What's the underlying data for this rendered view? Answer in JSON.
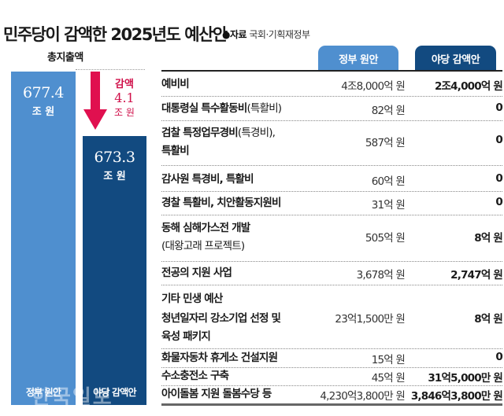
{
  "title": "민주당이 감액한 2025년도 예산안",
  "source_label": "●자료",
  "source": "국회·기획재정부",
  "chart_data": {
    "type": "bar",
    "title": "총지출액",
    "categories": [
      "정부 원안",
      "야당 감액안"
    ],
    "values": [
      677.4,
      673.3
    ],
    "value_labels": [
      "677.4",
      "673.3"
    ],
    "unit": "조 원",
    "colors": [
      "#4f8fcf",
      "#124a80"
    ],
    "annotation": {
      "label": "감액",
      "value": "4.1",
      "unit": "조 원",
      "color": "#d0104a"
    }
  },
  "table": {
    "headers": [
      "정부 원안",
      "야당 감액안"
    ],
    "rows": [
      {
        "name": "예비비",
        "gov": "4조8,000억 원",
        "opp": "2조4,000억 원"
      },
      {
        "name": "대통령실 특수활동비",
        "sub": "(특활비)",
        "gov": "82억 원",
        "opp": "0"
      },
      {
        "name": "검찰 특정업무경비",
        "sub": "(특경비),",
        "name2": "특활비",
        "gov": "587억 원",
        "opp": "0"
      },
      {
        "name": "감사원 특경비, 특활비",
        "gov": "60억 원",
        "opp": "0"
      },
      {
        "name": "경찰 특활비, 치안활동지원비",
        "gov": "31억 원",
        "opp": "0"
      },
      {
        "name": "동해 심해가스전 개발",
        "name2": "(대왕고래 프로젝트)",
        "gov": "505억 원",
        "opp": "8억 원"
      },
      {
        "name": "전공의 지원 사업",
        "gov": "3,678억 원",
        "opp": "2,747억 원"
      },
      {
        "name": "기타 민생 예산"
      },
      {
        "name": "청년일자리 강소기업 선정 및",
        "name2": "육성 패키지",
        "gov": "23억1,500만 원",
        "opp": "8억 원"
      },
      {
        "name": "화물자동차 휴게소 건설지원",
        "gov": "15억 원",
        "opp": "0"
      },
      {
        "name": "수소충전소 구축",
        "gov": "45억 원",
        "opp": "31억5,000만 원"
      },
      {
        "name": "아이돌봄 지원 돌봄수당 등",
        "gov": "4,230억3,800만 원",
        "opp": "3,846억3,800만 원"
      }
    ]
  },
  "watermark": "한국일보"
}
